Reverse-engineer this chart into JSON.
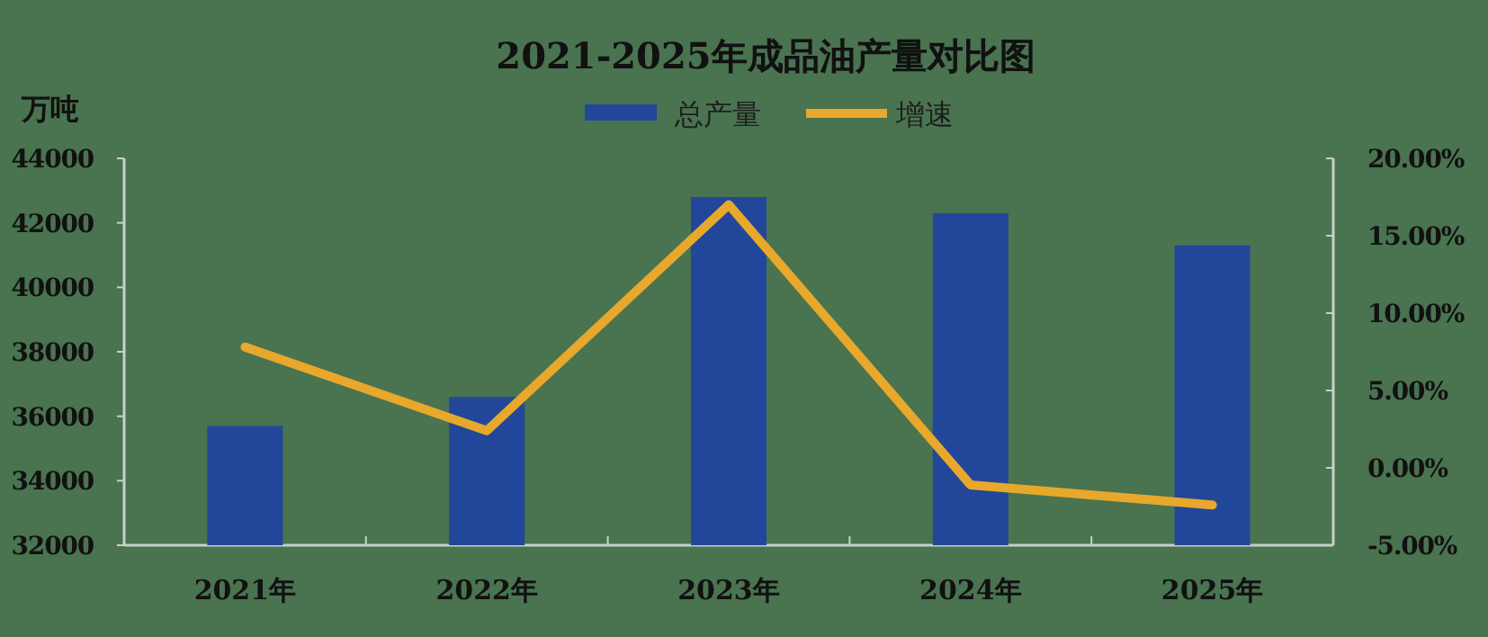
{
  "chart_data": {
    "type": "bar",
    "title": "2021-2025年成品油产量对比图",
    "ylabel": "万吨",
    "categories": [
      "2021年",
      "2022年",
      "2023年",
      "2024年",
      "2025年"
    ],
    "series": [
      {
        "name": "总产量",
        "color": "#22479a",
        "values": [
          35700,
          36600,
          42800,
          42300,
          41300
        ]
      },
      {
        "name": "增速",
        "type": "line",
        "axis": "y2",
        "color": "#e8a82b",
        "values": [
          7.8,
          2.4,
          17.0,
          -1.1,
          -2.4
        ]
      }
    ],
    "ylim": [
      32000,
      44000
    ],
    "yticks": [
      32000,
      34000,
      36000,
      38000,
      40000,
      42000,
      44000
    ],
    "y2lim": [
      -5,
      20
    ],
    "y2ticks": [
      {
        "value": -5,
        "label": "-5.00%"
      },
      {
        "value": 0,
        "label": "0.00%"
      },
      {
        "value": 5,
        "label": "5.00%"
      },
      {
        "value": 10,
        "label": "10.00%"
      },
      {
        "value": 15,
        "label": "15.00%"
      },
      {
        "value": 20,
        "label": "20.00%"
      }
    ],
    "legend": "top",
    "grid": false
  }
}
